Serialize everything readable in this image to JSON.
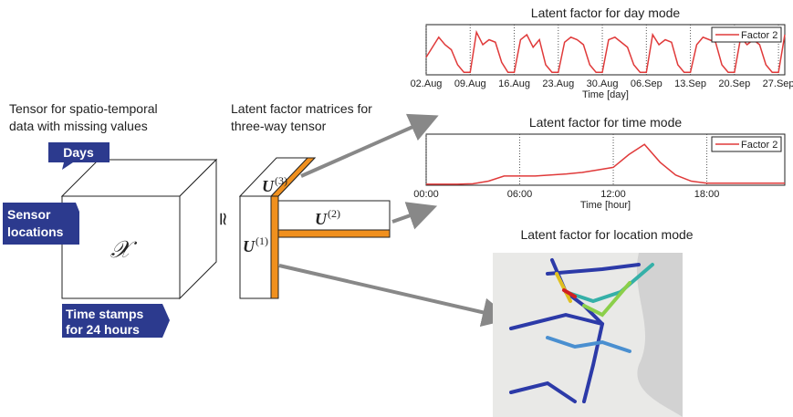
{
  "left": {
    "caption": [
      "Tensor for spatio-temporal",
      "data with missing values"
    ],
    "tensor_symbol": "𝒳",
    "days_label": "Days",
    "sensor_label": [
      "Sensor",
      "locations"
    ],
    "time_label": [
      "Time stamps",
      "for 24 hours"
    ]
  },
  "middle": {
    "caption": [
      "Latent factor matrices for",
      "three-way tensor"
    ],
    "approx_symbol": "≃",
    "u1": {
      "base": "U",
      "sup": "(1)"
    },
    "u2": {
      "base": "U",
      "sup": "(2)"
    },
    "u3": {
      "base": "U",
      "sup": "(3)"
    }
  },
  "day_chart": {
    "title": "Latent factor for day mode",
    "x_label": "Time [day]",
    "legend": "Factor 2",
    "color": "#e03a3a",
    "xlim": [
      0,
      57
    ],
    "ylim": [
      0,
      1
    ],
    "xticks": [
      {
        "value": 0,
        "label": "02.Aug"
      },
      {
        "value": 7,
        "label": "09.Aug"
      },
      {
        "value": 14,
        "label": "16.Aug"
      },
      {
        "value": 21,
        "label": "23.Aug"
      },
      {
        "value": 28,
        "label": "30.Aug"
      },
      {
        "value": 35,
        "label": "06.Sep"
      },
      {
        "value": 42,
        "label": "13.Sep"
      },
      {
        "value": 49,
        "label": "20.Sep"
      },
      {
        "value": 56,
        "label": "27.Sep"
      }
    ],
    "x": [
      0,
      1,
      2,
      3,
      4,
      5,
      6,
      7,
      8,
      9,
      10,
      11,
      12,
      13,
      14,
      15,
      16,
      17,
      18,
      19,
      20,
      21,
      22,
      23,
      24,
      25,
      26,
      27,
      28,
      29,
      30,
      31,
      32,
      33,
      34,
      35,
      36,
      37,
      38,
      39,
      40,
      41,
      42,
      43,
      44,
      45,
      46,
      47,
      48,
      49,
      50,
      51,
      52,
      53,
      54,
      55,
      56,
      57
    ],
    "values": [
      0.35,
      0.55,
      0.75,
      0.6,
      0.5,
      0.2,
      0.05,
      0.05,
      0.85,
      0.6,
      0.7,
      0.65,
      0.25,
      0.05,
      0.05,
      0.7,
      0.8,
      0.55,
      0.7,
      0.2,
      0.05,
      0.05,
      0.65,
      0.75,
      0.7,
      0.6,
      0.2,
      0.05,
      0.05,
      0.7,
      0.75,
      0.65,
      0.55,
      0.2,
      0.05,
      0.05,
      0.8,
      0.6,
      0.7,
      0.65,
      0.2,
      0.05,
      0.05,
      0.6,
      0.75,
      0.7,
      0.65,
      0.2,
      0.05,
      0.05,
      0.75,
      0.6,
      0.7,
      0.6,
      0.2,
      0.05,
      0.05,
      0.8
    ]
  },
  "time_chart": {
    "title": "Latent factor for time mode",
    "x_label": "Time [hour]",
    "legend": "Factor 2",
    "color": "#e03a3a",
    "xlim": [
      0,
      23
    ],
    "ylim": [
      0,
      1
    ],
    "xticks": [
      {
        "value": 0,
        "label": "00:00"
      },
      {
        "value": 6,
        "label": "06:00"
      },
      {
        "value": 12,
        "label": "12:00"
      },
      {
        "value": 18,
        "label": "18:00"
      }
    ],
    "x": [
      0,
      1,
      2,
      3,
      4,
      5,
      6,
      7,
      8,
      9,
      10,
      11,
      12,
      13,
      14,
      15,
      16,
      17,
      18,
      19,
      20,
      21,
      22,
      23
    ],
    "values": [
      0.02,
      0.02,
      0.02,
      0.03,
      0.08,
      0.18,
      0.18,
      0.18,
      0.2,
      0.22,
      0.25,
      0.3,
      0.35,
      0.6,
      0.8,
      0.45,
      0.2,
      0.08,
      0.04,
      0.04,
      0.04,
      0.04,
      0.04,
      0.04
    ]
  },
  "map": {
    "title": "Latent factor for location mode"
  }
}
